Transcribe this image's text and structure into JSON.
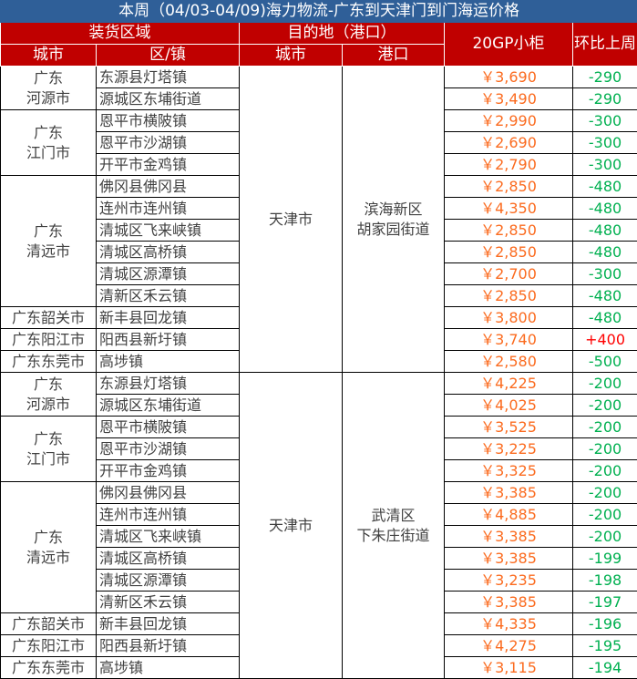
{
  "title": "本周（04/03-04/09)海力物流-广东到天津门到门海运价格",
  "headers": {
    "loading_area": "装货区域",
    "destination": "目的地（港口）",
    "price": "20GP小柜",
    "change": "环比上周",
    "city": "城市",
    "district": "区/镇",
    "dest_city": "城市",
    "port": "港口"
  },
  "colors": {
    "title_bg": "#2f5f98",
    "header_bg": "#c00000",
    "price": "#fb6b1f",
    "decrease": "#00b050",
    "increase": "#ff0000"
  },
  "sections": [
    {
      "dest_city": "天津市",
      "port": "滨海新区\n胡家园街道",
      "groups": [
        {
          "city": "广东\n河源市",
          "rows": [
            [
              "东源县灯塔镇",
              "￥3,690",
              "-290"
            ],
            [
              "源城区东埔街道",
              "￥3,490",
              "-290"
            ]
          ]
        },
        {
          "city": "广东\n江门市",
          "rows": [
            [
              "恩平市横陂镇",
              "￥2,990",
              "-300"
            ],
            [
              "恩平市沙湖镇",
              "￥2,690",
              "-300"
            ],
            [
              "开平市金鸡镇",
              "￥2,790",
              "-300"
            ]
          ]
        },
        {
          "city": "广东\n清远市",
          "rows": [
            [
              "佛冈县佛冈县",
              "￥2,850",
              "-480"
            ],
            [
              "连州市连州镇",
              "￥4,350",
              "-480"
            ],
            [
              "清城区飞来峡镇",
              "￥2,850",
              "-480"
            ],
            [
              "清城区高桥镇",
              "￥2,850",
              "-480"
            ],
            [
              "清城区源潭镇",
              "￥2,700",
              "-300"
            ],
            [
              "清新区禾云镇",
              "￥2,850",
              "-480"
            ]
          ]
        },
        {
          "city": "广东韶关市",
          "rows": [
            [
              "新丰县回龙镇",
              "￥3,800",
              "-480"
            ]
          ]
        },
        {
          "city": "广东阳江市",
          "rows": [
            [
              "阳西县新圩镇",
              "￥3,740",
              "+400"
            ]
          ]
        },
        {
          "city": "广东东莞市",
          "rows": [
            [
              "高埗镇",
              "￥2,580",
              "-500"
            ]
          ]
        }
      ]
    },
    {
      "dest_city": "天津市",
      "port": "武清区\n下朱庄街道",
      "groups": [
        {
          "city": "广东\n河源市",
          "rows": [
            [
              "东源县灯塔镇",
              "￥4,225",
              "-200"
            ],
            [
              "源城区东埔街道",
              "￥4,025",
              "-200"
            ]
          ]
        },
        {
          "city": "广东\n江门市",
          "rows": [
            [
              "恩平市横陂镇",
              "￥3,525",
              "-200"
            ],
            [
              "恩平市沙湖镇",
              "￥3,225",
              "-200"
            ],
            [
              "开平市金鸡镇",
              "￥3,325",
              "-200"
            ]
          ]
        },
        {
          "city": "广东\n清远市",
          "rows": [
            [
              "佛冈县佛冈县",
              "￥3,385",
              "-200"
            ],
            [
              "连州市连州镇",
              "￥4,885",
              "-200"
            ],
            [
              "清城区飞来峡镇",
              "￥3,385",
              "-200"
            ],
            [
              "清城区高桥镇",
              "￥3,385",
              "-199"
            ],
            [
              "清城区源潭镇",
              "￥3,235",
              "-198"
            ],
            [
              "清新区禾云镇",
              "￥3,385",
              "-197"
            ]
          ]
        },
        {
          "city": "广东韶关市",
          "rows": [
            [
              "新丰县回龙镇",
              "￥4,335",
              "-196"
            ]
          ]
        },
        {
          "city": "广东阳江市",
          "rows": [
            [
              "阳西县新圩镇",
              "￥4,275",
              "-195"
            ]
          ]
        },
        {
          "city": "广东东莞市",
          "rows": [
            [
              "高埗镇",
              "￥3,115",
              "-194"
            ]
          ]
        }
      ]
    }
  ]
}
